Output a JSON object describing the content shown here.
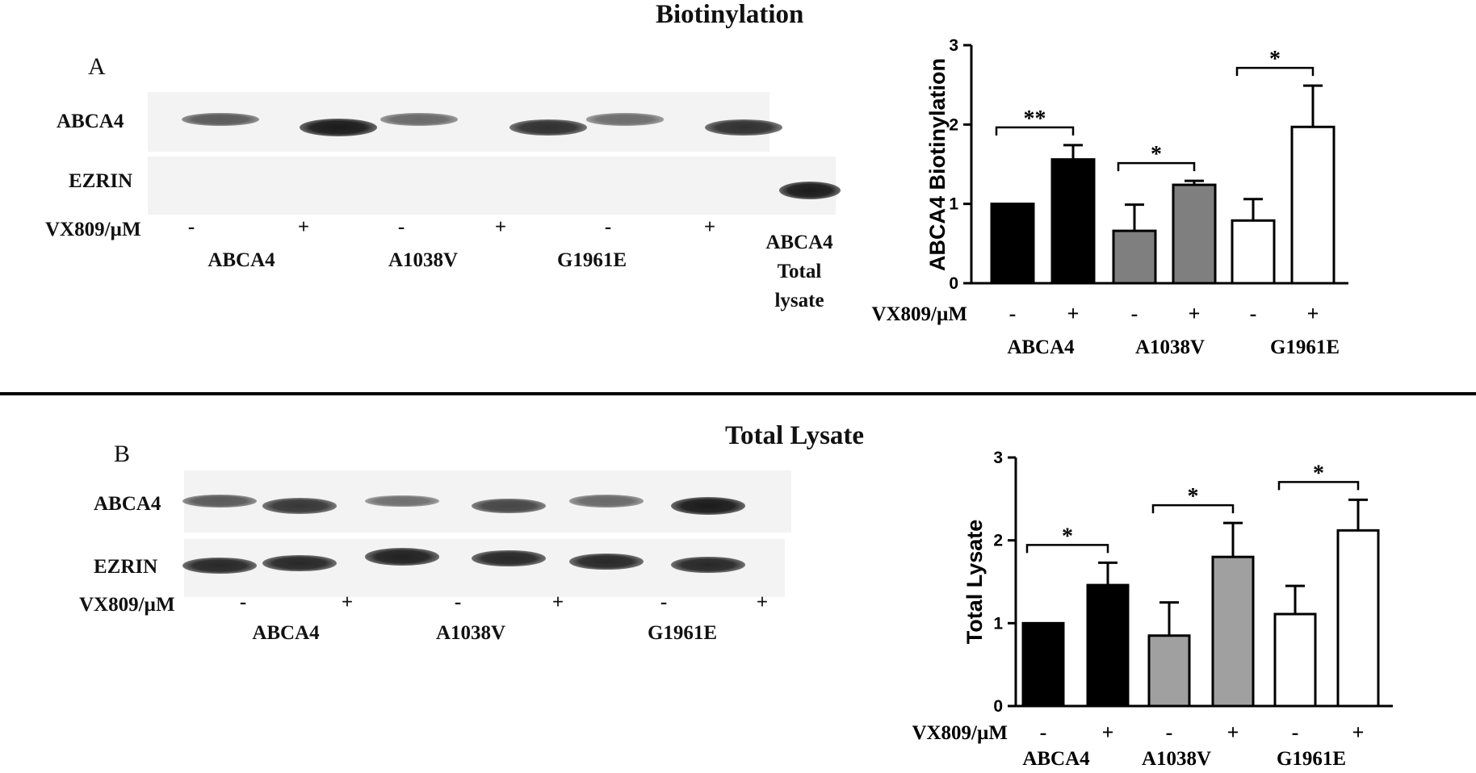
{
  "panel_a": {
    "title": "Biotinylation",
    "letter": "A",
    "row_labels": [
      "ABCA4",
      "EZRIN"
    ],
    "treatment_label": "VX809/µM",
    "signs": [
      "-",
      "+",
      "-",
      "+",
      "-",
      "+"
    ],
    "groups": [
      "ABCA4",
      "A1038V",
      "G1961E"
    ],
    "extra_lane": [
      "ABCA4",
      "Total",
      "lysate"
    ],
    "bands": {
      "abca4": [
        0.55,
        1.0,
        0.45,
        0.85,
        0.42,
        0.85
      ],
      "ezrin_total_lysate": 1.0
    }
  },
  "panel_b": {
    "title": "Total Lysate",
    "letter": "B",
    "row_labels": [
      "ABCA4",
      "EZRIN"
    ],
    "treatment_label": "VX809/µM",
    "signs": [
      "-",
      "+",
      "-",
      "+",
      "-",
      "+"
    ],
    "groups": [
      "ABCA4",
      "A1038V",
      "G1961E"
    ],
    "bands": {
      "abca4": [
        0.55,
        0.8,
        0.4,
        0.7,
        0.45,
        1.0
      ],
      "ezrin": [
        0.9,
        0.9,
        0.95,
        0.9,
        0.9,
        0.9
      ]
    }
  },
  "chart_data": [
    {
      "type": "bar",
      "ylabel": "ABCA4 Biotinylation",
      "ylim": [
        0,
        3
      ],
      "yticks": [
        0,
        1,
        2,
        3
      ],
      "treatment_label": "VX809/µM",
      "signs": [
        "-",
        "+",
        "-",
        "+",
        "-",
        "+"
      ],
      "groups": [
        "ABCA4",
        "A1038V",
        "G1961E"
      ],
      "values": [
        1.0,
        1.56,
        0.66,
        1.24,
        0.79,
        1.97
      ],
      "errors": [
        0,
        0.18,
        0.33,
        0.05,
        0.27,
        0.52
      ],
      "colors": [
        "#000000",
        "#000000",
        "#7f7f7f",
        "#7f7f7f",
        "#ffffff",
        "#ffffff"
      ],
      "significance": [
        {
          "from": 0,
          "to": 1,
          "label": "**"
        },
        {
          "from": 2,
          "to": 3,
          "label": "*"
        },
        {
          "from": 4,
          "to": 5,
          "label": "*"
        }
      ]
    },
    {
      "type": "bar",
      "ylabel": "Total Lysate",
      "ylim": [
        0,
        3
      ],
      "yticks": [
        0,
        1,
        2,
        3
      ],
      "treatment_label": "VX809/µM",
      "signs": [
        "-",
        "+",
        "-",
        "+",
        "-",
        "+"
      ],
      "groups": [
        "ABCA4",
        "A1038V",
        "G1961E"
      ],
      "values": [
        1.0,
        1.46,
        0.85,
        1.8,
        1.11,
        2.12
      ],
      "errors": [
        0,
        0.27,
        0.4,
        0.41,
        0.34,
        0.37
      ],
      "colors": [
        "#000000",
        "#000000",
        "#a0a0a0",
        "#a0a0a0",
        "#ffffff",
        "#ffffff"
      ],
      "significance": [
        {
          "from": 0,
          "to": 1,
          "label": "*"
        },
        {
          "from": 2,
          "to": 3,
          "label": "*"
        },
        {
          "from": 4,
          "to": 5,
          "label": "*"
        }
      ]
    }
  ]
}
